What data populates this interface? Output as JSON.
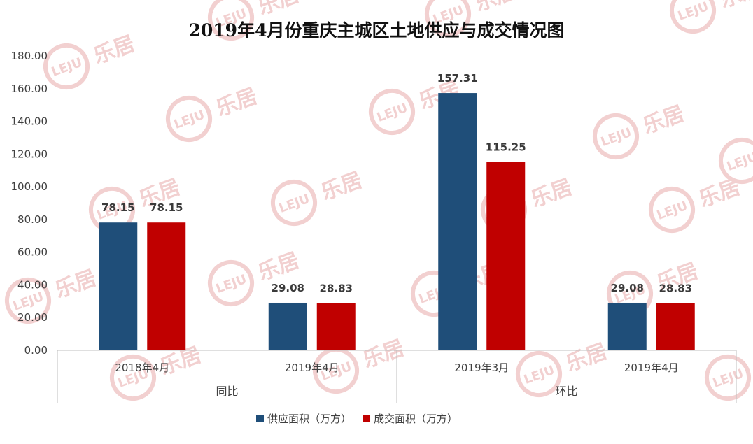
{
  "chart_data": {
    "type": "bar",
    "title": "2019年4月份重庆主城区土地供应与成交情况图",
    "xlabel": "",
    "ylabel": "",
    "ylim": [
      0,
      180
    ],
    "yticks": [
      "0.00",
      "20.00",
      "40.00",
      "60.00",
      "80.00",
      "100.00",
      "120.00",
      "140.00",
      "160.00",
      "180.00"
    ],
    "grid": false,
    "legend": "bottom",
    "groups": [
      {
        "label": "同比",
        "categories": [
          "2018年4月",
          "2019年4月"
        ]
      },
      {
        "label": "环比",
        "categories": [
          "2019年3月",
          "2019年4月"
        ]
      }
    ],
    "categories": [
      "2018年4月",
      "2019年4月",
      "2019年3月",
      "2019年4月"
    ],
    "series": [
      {
        "name": "供应面积（万方）",
        "color": "#1f4e79",
        "values": [
          78.15,
          29.08,
          157.31,
          29.08
        ],
        "labels": [
          "78.15",
          "29.08",
          "157.31",
          "29.08"
        ]
      },
      {
        "name": "成交面积（万方）",
        "color": "#c00000",
        "values": [
          78.15,
          28.83,
          115.25,
          28.83
        ],
        "labels": [
          "78.15",
          "28.83",
          "115.25",
          "28.83"
        ]
      }
    ]
  },
  "watermark": {
    "text": "乐居",
    "logo_text": "LEJU",
    "color": "#f2d0d0"
  },
  "colors": {
    "axis": "#bfbfbf",
    "text": "#404040"
  }
}
